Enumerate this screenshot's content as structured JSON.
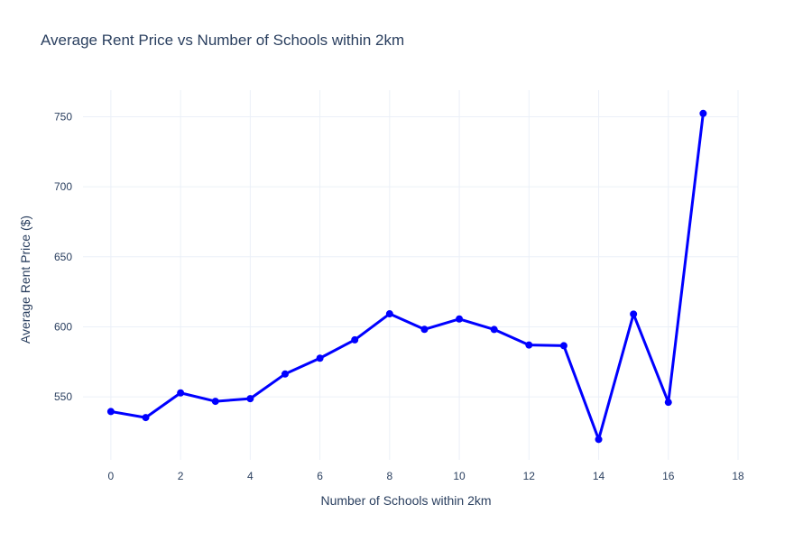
{
  "chart_data": {
    "type": "line",
    "title": "Average Rent Price vs Number of Schools within 2km",
    "xlabel": "Number of Schools within 2km",
    "ylabel": "Average Rent Price ($)",
    "x": [
      0,
      1,
      2,
      3,
      4,
      5,
      6,
      7,
      8,
      9,
      10,
      11,
      12,
      13,
      14,
      15,
      16,
      17
    ],
    "y": [
      539.5,
      535.2,
      552.8,
      546.8,
      548.7,
      566.3,
      577.6,
      590.7,
      609.3,
      598.2,
      605.6,
      598.1,
      587.0,
      586.5,
      519.6,
      609.1,
      546.1,
      752.4
    ],
    "xlim": [
      -0.8,
      18
    ],
    "ylim": [
      505,
      769
    ],
    "x_ticks": [
      0,
      2,
      4,
      6,
      8,
      10,
      12,
      14,
      16,
      18
    ],
    "x_tick_labels": [
      "0",
      "2",
      "4",
      "6",
      "8",
      "10",
      "12",
      "14",
      "16",
      "18"
    ],
    "y_ticks": [
      550,
      600,
      650,
      700,
      750
    ],
    "y_tick_labels": [
      "550",
      "600",
      "650",
      "700",
      "750"
    ],
    "grid": true,
    "line_color": "#0000ff",
    "marker_color": "#0000ff",
    "text_color": "#2a3f5f",
    "grid_color": "#ebf0f8"
  }
}
